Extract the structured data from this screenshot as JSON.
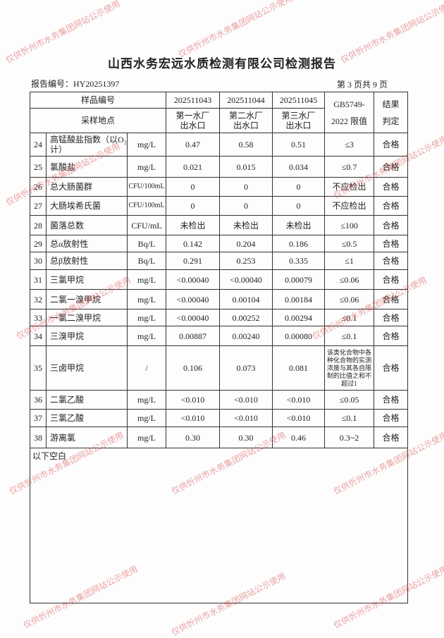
{
  "header": {
    "title": "山西水务宏远水质检测有限公司检测报告",
    "report_no": "报告编号：HY20251397",
    "page": "第 3 页共 9 页"
  },
  "table": {
    "headers": {
      "sample_no_label": "样品编号",
      "site_label": "采样地点",
      "sample_nos": [
        "202511043",
        "202511044",
        "202511045"
      ],
      "sites": [
        [
          "第一水厂",
          "出水口"
        ],
        [
          "第二水厂",
          "出水口"
        ],
        [
          "第三水厂",
          "出水口"
        ]
      ],
      "limit_label": [
        "GB5749-",
        "2022 限值"
      ],
      "result_label": [
        "结果",
        "判定"
      ]
    },
    "rows": [
      [
        "24",
        "高锰酸盐指数（以O₂计）",
        "mg/L",
        "0.47",
        "0.58",
        "0.51",
        "≤3",
        "合格"
      ],
      [
        "25",
        "氯酸盐",
        "mg/L",
        "0.021",
        "0.015",
        "0.034",
        "≤0.7",
        "合格"
      ],
      [
        "26",
        "总大肠菌群",
        "CFU/100mL",
        "0",
        "0",
        "0",
        "不应检出",
        "合格"
      ],
      [
        "27",
        "大肠埃希氏菌",
        "CFU/100mL",
        "0",
        "0",
        "0",
        "不应检出",
        "合格"
      ],
      [
        "28",
        "菌落总数",
        "CFU/mL",
        "未检出",
        "未检出",
        "未检出",
        "≤100",
        "合格"
      ],
      [
        "29",
        "总α放射性",
        "Bq/L",
        "0.142",
        "0.204",
        "0.186",
        "≤0.5",
        "合格"
      ],
      [
        "30",
        "总β放射性",
        "Bq/L",
        "0.291",
        "0.253",
        "0.335",
        "≤1",
        "合格"
      ],
      [
        "31",
        "三氯甲烷",
        "mg/L",
        "<0.00040",
        "<0.00040",
        "0.00079",
        "≤0.06",
        "合格"
      ],
      [
        "32",
        "二氯一溴甲烷",
        "mg/L",
        "<0.00040",
        "0.00104",
        "0.00184",
        "≤0.06",
        "合格"
      ],
      [
        "33",
        "一氯二溴甲烷",
        "mg/L",
        "<0.00040",
        "0.00252",
        "0.00294",
        "≤0.1",
        "合格"
      ],
      [
        "34",
        "三溴甲烷",
        "mg/L",
        "0.00887",
        "0.00240",
        "0.00080",
        "≤0.1",
        "合格"
      ],
      [
        "35",
        "三卤甲烷",
        "/",
        "0.106",
        "0.073",
        "0.081",
        "该类化合物中各种化合物的实测浓度与其各自限制的比值之和不超过1",
        "合格"
      ],
      [
        "36",
        "二氯乙酸",
        "mg/L",
        "<0.010",
        "<0.010",
        "<0.010",
        "≤0.05",
        "合格"
      ],
      [
        "37",
        "三氯乙酸",
        "mg/L",
        "<0.010",
        "<0.010",
        "<0.010",
        "≤0.1",
        "合格"
      ],
      [
        "38",
        "游离氯",
        "mg/L",
        "0.30",
        "0.30",
        "0.46",
        "0.3~2",
        "合格"
      ]
    ]
  },
  "footer_note": "以下空白",
  "watermark": "仅供忻州市水务集团网站公示使用"
}
